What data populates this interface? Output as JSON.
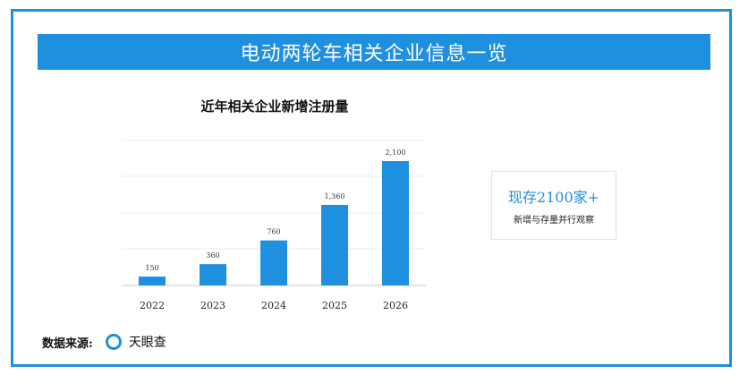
{
  "header": {
    "title": "电动两轮车相关企业信息一览"
  },
  "chart_data": {
    "type": "bar",
    "title": "近年相关企业新增注册量",
    "categories": [
      "2022",
      "2023",
      "2024",
      "2025",
      "2026"
    ],
    "values": [
      150,
      360,
      760,
      1360,
      2100
    ],
    "value_labels": [
      "150",
      "360",
      "760",
      "1,360",
      "2,100"
    ],
    "ylim": [
      0,
      2100
    ],
    "grid": true,
    "bar_color": "#1f8fe0"
  },
  "summary_card": {
    "value": "现存2100家+",
    "caption": "新增与存量并行观察"
  },
  "source": {
    "label": "数据来源:",
    "name": "天眼查",
    "icon": "ring-icon"
  },
  "colors": {
    "accent": "#1f8fe0"
  }
}
